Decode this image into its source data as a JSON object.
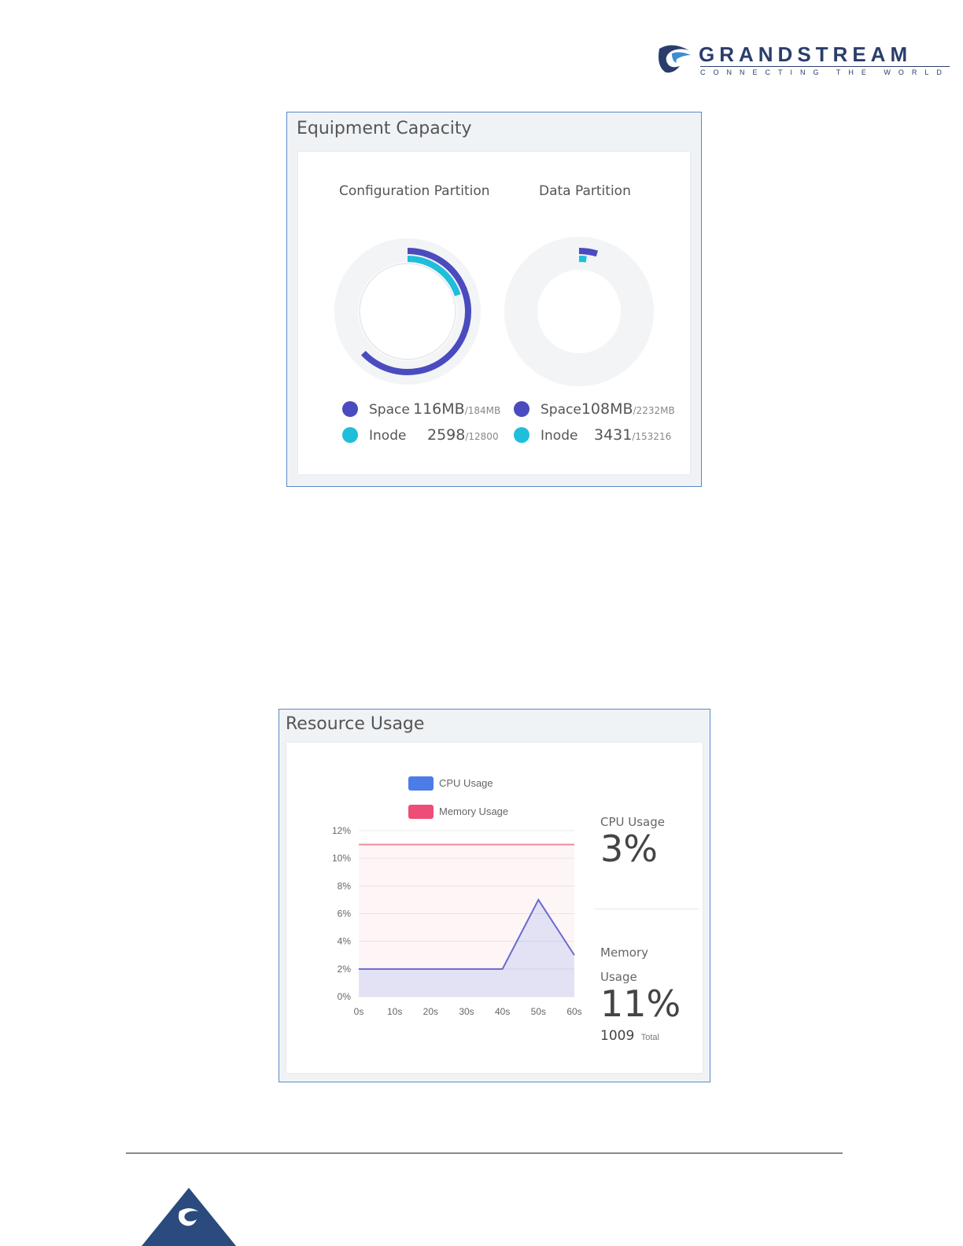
{
  "header": {
    "brand": "GRANDSTREAM",
    "tagline": "CONNECTING THE WORLD",
    "brand_color": "#2b3d6b"
  },
  "equipment_capacity": {
    "title": "Equipment Capacity",
    "colors": {
      "space": "#4a4bbf",
      "inode": "#1fbedb",
      "track": "#f2f4f6"
    },
    "partitions": [
      {
        "title": "Configuration Partition",
        "space": {
          "label": "Space",
          "used": "116MB",
          "total": "/184MB",
          "fraction": 0.63
        },
        "inode": {
          "label": "Inode",
          "used": "2598",
          "total": "/12800",
          "fraction": 0.2
        }
      },
      {
        "title": "Data Partition",
        "space": {
          "label": "Space",
          "used": "108MB",
          "total": "/2232MB",
          "fraction": 0.048
        },
        "inode": {
          "label": "Inode",
          "used": "3431",
          "total": "/153216",
          "fraction": 0.022
        }
      }
    ]
  },
  "resource_usage": {
    "title": "Resource Usage",
    "cpu": {
      "label": "CPU Usage",
      "value": "3%"
    },
    "memory": {
      "label_line1": "Memory",
      "label_line2": "Usage",
      "value": "11%",
      "total_value": "1009",
      "total_label": "Total"
    }
  },
  "chart_data": {
    "type": "area",
    "x": [
      0,
      10,
      20,
      30,
      40,
      50,
      60
    ],
    "x_tick_labels": [
      "0s",
      "10s",
      "20s",
      "30s",
      "40s",
      "50s",
      "60s"
    ],
    "y_tick_labels": [
      "0%",
      "2%",
      "4%",
      "6%",
      "8%",
      "10%",
      "12%"
    ],
    "ylim": [
      0,
      12
    ],
    "xlim": [
      0,
      60
    ],
    "grid": true,
    "legend_placement": "top",
    "series": [
      {
        "name": "CPU Usage",
        "color": "#4d7be8",
        "line_color": "#6a6ad0",
        "values": [
          2,
          2,
          2,
          2,
          2,
          7,
          3
        ]
      },
      {
        "name": "Memory Usage",
        "color": "#ee4d78",
        "line_color": "#f08a9a",
        "values": [
          11,
          11,
          11,
          11,
          11,
          11,
          11
        ]
      }
    ]
  }
}
